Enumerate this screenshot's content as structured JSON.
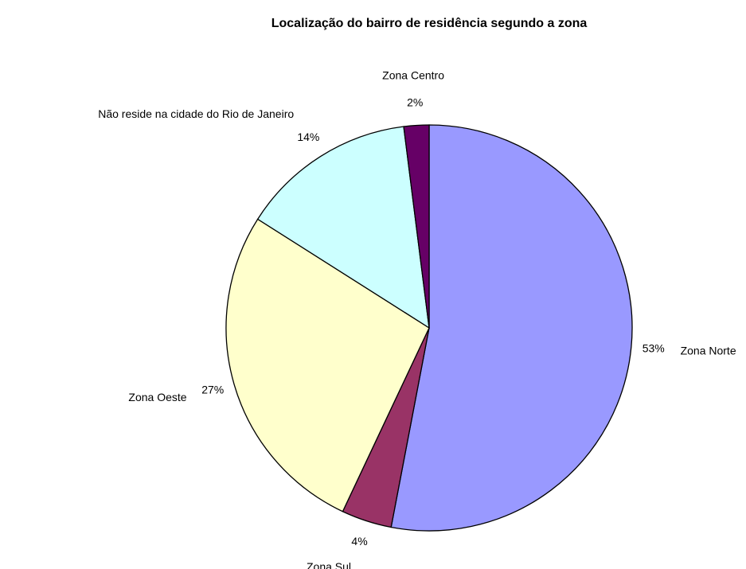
{
  "chart_data": {
    "type": "pie",
    "title": "Localização do bairro de residência segundo a zona",
    "categories": [
      "Zona Norte",
      "Zona Sul",
      "Zona Oeste",
      "Não reside na cidade do Rio de Janeiro",
      "Zona Centro"
    ],
    "values": [
      53,
      4,
      27,
      14,
      2
    ],
    "value_labels": [
      "53%",
      "4%",
      "27%",
      "14%",
      "2%"
    ],
    "colors": [
      "#9999ff",
      "#993366",
      "#ffffcc",
      "#ccffff",
      "#660066"
    ]
  }
}
